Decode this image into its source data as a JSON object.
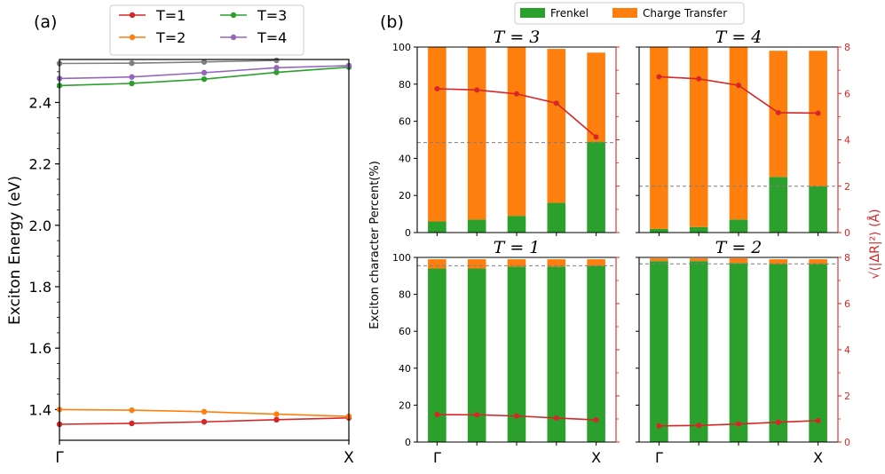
{
  "chart_data": [
    {
      "type": "line",
      "panel_label": "(a)",
      "ylabel": "Exciton Energy (eV)",
      "xticks": [
        "Γ",
        "X"
      ],
      "ylim": [
        1.3,
        2.54
      ],
      "yticks": [
        1.4,
        1.6,
        1.8,
        2.0,
        2.2,
        2.4
      ],
      "ytick_labels": [
        "1.4",
        "1.6",
        "1.8",
        "2.0",
        "2.2",
        "2.4"
      ],
      "x": [
        0,
        1,
        2,
        3,
        4
      ],
      "legend": {
        "location": "top",
        "entries": [
          "T=1",
          "T=2",
          "T=3",
          "T=4"
        ]
      },
      "series": [
        {
          "name": "T=1",
          "color": "#d62728",
          "values": [
            1.352,
            1.355,
            1.36,
            1.367,
            1.373
          ]
        },
        {
          "name": "T=2",
          "color": "#ff7f0e",
          "values": [
            1.4,
            1.398,
            1.393,
            1.385,
            1.378
          ]
        },
        {
          "name": "T=3",
          "color": "#2ca02c",
          "values": [
            2.455,
            2.462,
            2.476,
            2.498,
            2.515
          ]
        },
        {
          "name": "T=4",
          "color": "#9467bd",
          "values": [
            2.478,
            2.483,
            2.497,
            2.513,
            2.52
          ]
        },
        {
          "name": "",
          "color": "#7f7f7f",
          "values": [
            2.527,
            2.528,
            2.532,
            2.537,
            null
          ]
        }
      ]
    },
    {
      "type": "bar",
      "panel_label": "(b)",
      "ylabel": "Exciton character Percent(%)",
      "y2label": "√⟨|ΔR|²⟩ (Å)",
      "legend": {
        "location": "top",
        "entries": [
          "Frenkel",
          "Charge Transfer"
        ]
      },
      "colors": {
        "frenkel": "#2ca02c",
        "ct": "#ff7f0e",
        "rms": "#d62728",
        "axis2": "#d62728"
      },
      "xticks": [
        "Γ",
        "X"
      ],
      "ylim": [
        0,
        100
      ],
      "y2lim": [
        0,
        8
      ],
      "yticks": [
        0,
        20,
        40,
        60,
        80,
        100
      ],
      "y2ticks": [
        0,
        2,
        4,
        6,
        8
      ],
      "subplots": [
        {
          "title": "T = 3",
          "frenkel": [
            6,
            7,
            9,
            16,
            49
          ],
          "ct": [
            94,
            93,
            91,
            83,
            48
          ],
          "rms": [
            6.2,
            6.15,
            5.98,
            5.58,
            4.12
          ],
          "dashed_level": 48.5
        },
        {
          "title": "T = 4",
          "frenkel": [
            2,
            3,
            7,
            30,
            25
          ],
          "ct": [
            98,
            97,
            93,
            68,
            73
          ],
          "rms": [
            6.72,
            6.63,
            6.35,
            5.17,
            5.15
          ],
          "dashed_level": 25
        },
        {
          "title": "T = 1",
          "frenkel": [
            94,
            94,
            95,
            95,
            95.5
          ],
          "ct": [
            5,
            5,
            4,
            4,
            3.5
          ],
          "rms": [
            1.19,
            1.18,
            1.13,
            1.04,
            0.96
          ],
          "dashed_level": 95.5
        },
        {
          "title": "T = 2",
          "frenkel": [
            98,
            98,
            97,
            96.5,
            96.5
          ],
          "ct": [
            1.5,
            1.5,
            2.5,
            2.5,
            2.5
          ],
          "rms": [
            0.7,
            0.72,
            0.78,
            0.86,
            0.93
          ],
          "dashed_level": 96.5
        }
      ]
    }
  ]
}
